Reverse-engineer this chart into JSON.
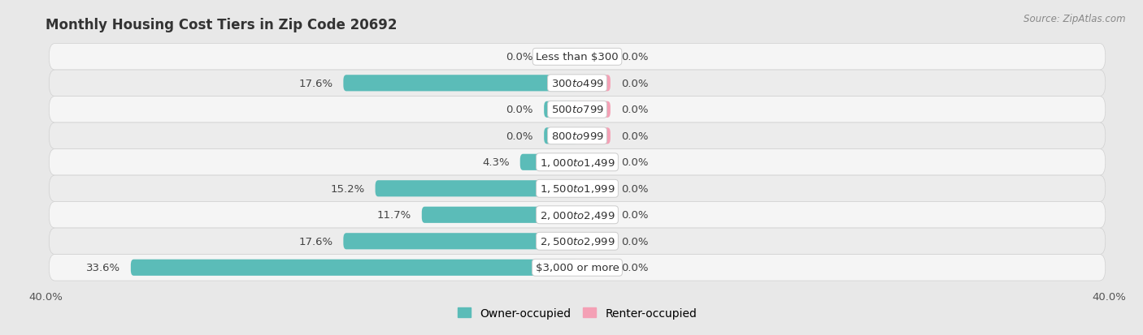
{
  "title": "Monthly Housing Cost Tiers in Zip Code 20692",
  "source": "Source: ZipAtlas.com",
  "categories": [
    "Less than $300",
    "$300 to $499",
    "$500 to $799",
    "$800 to $999",
    "$1,000 to $1,499",
    "$1,500 to $1,999",
    "$2,000 to $2,499",
    "$2,500 to $2,999",
    "$3,000 or more"
  ],
  "owner_values": [
    0.0,
    17.6,
    0.0,
    0.0,
    4.3,
    15.2,
    11.7,
    17.6,
    33.6
  ],
  "renter_values": [
    0.0,
    0.0,
    0.0,
    0.0,
    0.0,
    0.0,
    0.0,
    0.0,
    0.0
  ],
  "owner_color": "#5bbcb8",
  "renter_color": "#f4a0b5",
  "bg_color": "#e8e8e8",
  "row_bg_even": "#f2f2f2",
  "row_bg_odd": "#e0e0e0",
  "xlim": 40.0,
  "bar_height": 0.62,
  "min_stub": 2.5,
  "label_fontsize": 9.5,
  "category_fontsize": 9.5,
  "axis_label_fontsize": 9.5,
  "legend_fontsize": 10,
  "title_fontsize": 12
}
